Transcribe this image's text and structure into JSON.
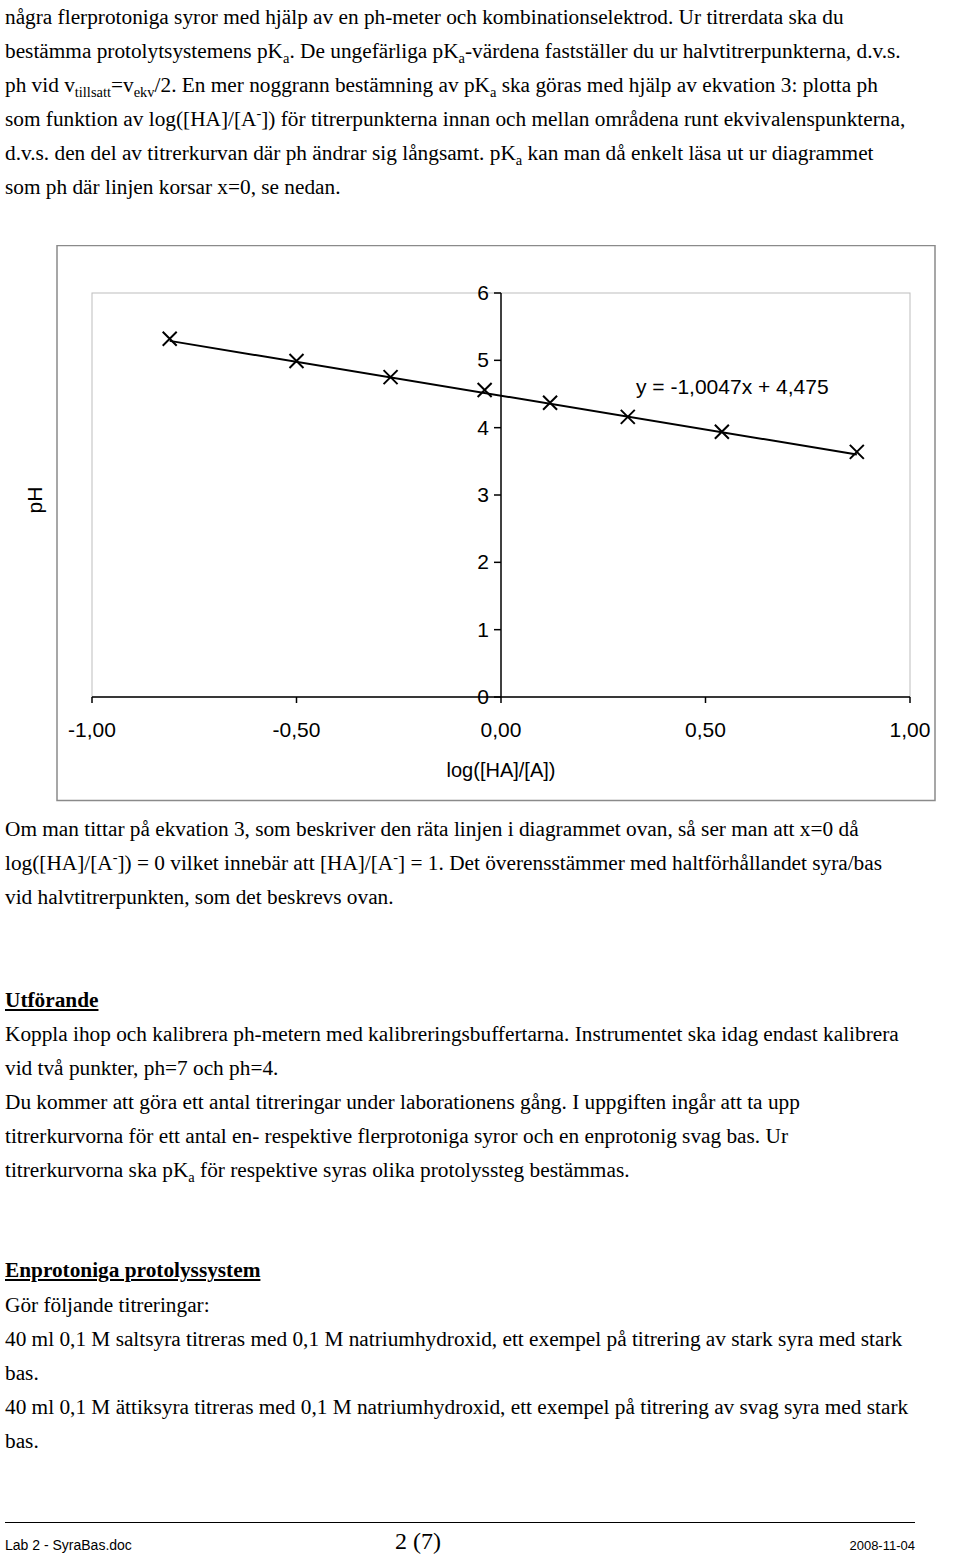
{
  "page": {
    "intro": [
      "några flerprotoniga syror med hjälp av en ph-meter och kombinationselektrod. Ur titrerdata ska du bestämma protolytsystemens pK",
      {
        "sub": "a"
      },
      ". De ungefärliga pK",
      {
        "sub": "a"
      },
      "-värdena fastställer du ur halvtitrerpunkterna, d.v.s. ph vid v",
      {
        "sub": "tillsatt"
      },
      "=v",
      {
        "sub": "ekv"
      },
      "/2. En mer noggrann bestämning av pK",
      {
        "sub": "a"
      },
      " ska göras med hjälp av ekvation 3: plotta ph som funktion av log([HA]/[A",
      {
        "sup": "-"
      },
      "]) för titrerpunkterna innan och mellan områdena runt ekvivalenspunkterna, d.v.s. den del av titrerkurvan där ph ändrar sig långsamt. pK",
      {
        "sub": "a"
      },
      " kan man då enkelt läsa ut ur diagrammet som ph där linjen korsar x=0, se nedan."
    ],
    "explanation": [
      "Om man tittar på ekvation 3, som beskriver den räta linjen i diagrammet ovan, så ser man att x=0 då log([HA]/[A",
      {
        "sup": "-"
      },
      "]) = 0 vilket innebär att [HA]/[A",
      {
        "sup": "-"
      },
      "] = 1. Det överensstämmer med haltförhållandet syra/bas vid halvtitrerpunkten, som det beskrevs ovan."
    ],
    "sections": [
      {
        "heading": "Utförande",
        "paragraphs": [
          [
            "Koppla ihop och kalibrera ph-metern med kalibreringsbuffertarna. Instrumentet ska idag endast kalibrera vid två punkter, ph=7 och ph=4."
          ],
          [
            "Du kommer att göra ett antal titreringar under laborationens gång. I uppgiften ingår att ta upp titrerkurvorna för ett antal en- respektive flerprotoniga syror och en enprotonig svag bas. Ur titrerkurvorna ska pK",
            {
              "sub": "a"
            },
            " för respektive syras olika protolyssteg bestämmas."
          ]
        ]
      },
      {
        "heading": "Enprotoniga protolyssystem",
        "paragraphs": [
          [
            "Gör följande titreringar:"
          ],
          [
            "40 ml 0,1 M saltsyra titreras med 0,1 M natriumhydroxid, ett exempel på titrering av stark syra med stark bas."
          ],
          [
            "40 ml 0,1 M ättiksyra titreras med 0,1 M natriumhydroxid, ett exempel på titrering av svag syra med stark bas."
          ]
        ]
      }
    ],
    "footer": {
      "file": "Lab 2 - SyraBas.doc",
      "page": "2 (7)",
      "date": "2008-11-04"
    }
  },
  "chart_data": {
    "type": "scatter",
    "xlabel": "log([HA]/[A])",
    "ylabel": "pH",
    "x": [
      -0.81,
      -0.5,
      -0.27,
      -0.04,
      0.12,
      0.31,
      0.54,
      0.87
    ],
    "values": [
      5.32,
      4.99,
      4.75,
      4.56,
      4.37,
      4.16,
      3.94,
      3.64
    ],
    "marker": "x",
    "color": "#000000",
    "trendline": {
      "slope": -1.0047,
      "intercept": 4.475,
      "label": "y = -1,0047x + 4,475"
    },
    "xlim": [
      -1,
      1
    ],
    "ylim": [
      0,
      6
    ],
    "xticks": [
      {
        "value": -1,
        "label": "-1,00"
      },
      {
        "value": -0.5,
        "label": "-0,50"
      },
      {
        "value": 0,
        "label": "0,00"
      },
      {
        "value": 0.5,
        "label": "0,50"
      },
      {
        "value": 1,
        "label": "1,00"
      }
    ],
    "yticks": [
      0,
      1,
      2,
      3,
      4,
      5,
      6
    ]
  }
}
